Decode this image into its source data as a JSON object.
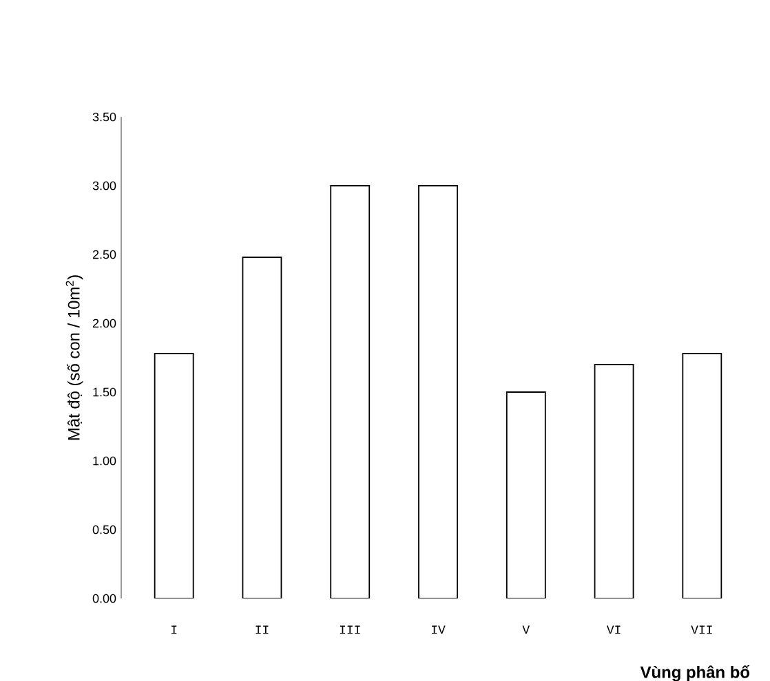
{
  "chart_data": {
    "type": "bar",
    "xlabel": "Vùng phân bố",
    "ylabel": "Mật độ (số con / 10m$^{2}$)",
    "categories": [
      "I",
      "II",
      "III",
      "IV",
      "V",
      "VI",
      "VII"
    ],
    "values": [
      1.78,
      2.48,
      3.0,
      3.0,
      1.5,
      1.7,
      1.78
    ],
    "color": "#ffffff",
    "ylim": [
      0,
      3.5
    ],
    "yticks": [
      {
        "value": 0,
        "label": "0.00"
      },
      {
        "value": 0.5,
        "label": "0.50"
      },
      {
        "value": 1,
        "label": "1.00"
      },
      {
        "value": 1.5,
        "label": "1.50"
      },
      {
        "value": 2,
        "label": "2.00"
      },
      {
        "value": 2.5,
        "label": "2.50"
      },
      {
        "value": 3,
        "label": "3.00"
      },
      {
        "value": 3.5,
        "label": "3.50"
      }
    ],
    "grid": false
  }
}
